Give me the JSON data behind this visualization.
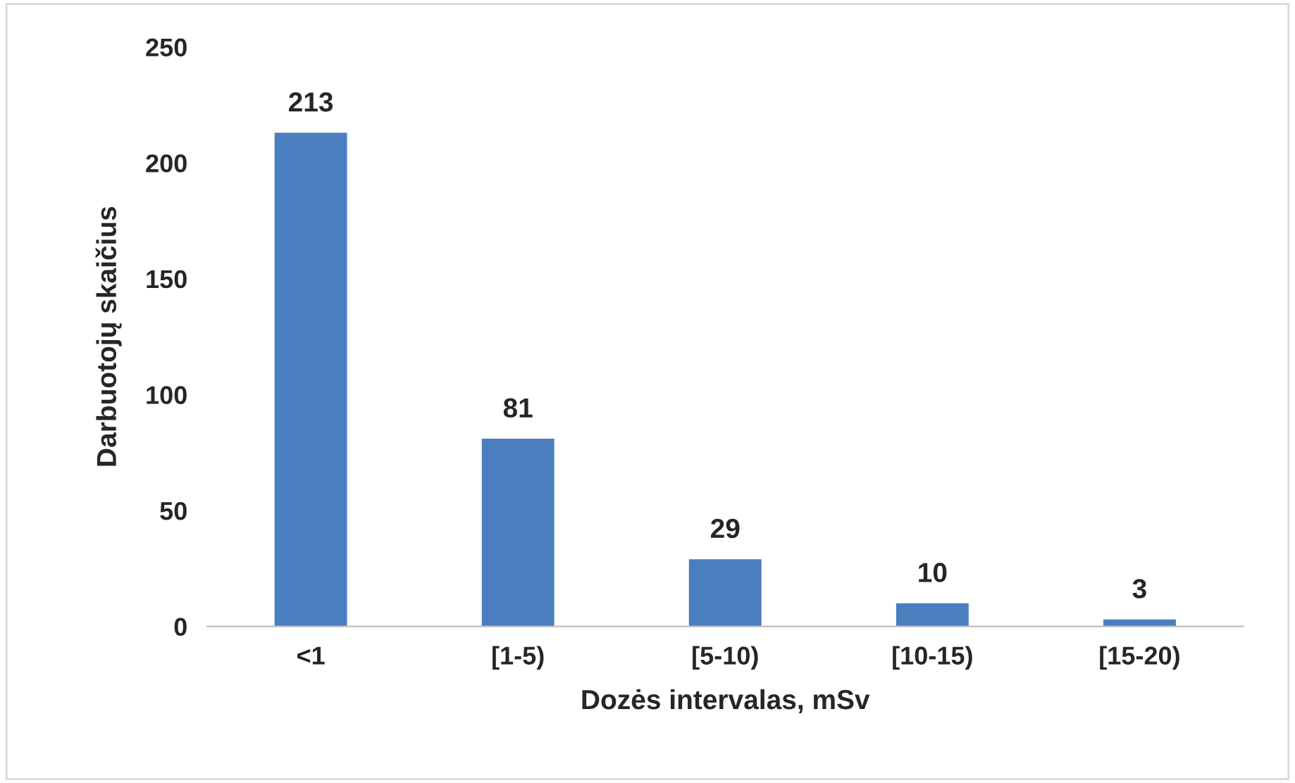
{
  "chart_data": {
    "type": "bar",
    "xlabel": "Dozės intervalas, mSv",
    "ylabel": "Darbuotojų skaičius",
    "categories": [
      "<1",
      "[1-5)",
      "[5-10)",
      "[10-15)",
      "[15-20)"
    ],
    "values": [
      213,
      81,
      29,
      10,
      3
    ],
    "color": "#4a7ebf",
    "ylim": [
      0,
      250
    ],
    "yticks": [
      0,
      50,
      100,
      150,
      200,
      250
    ],
    "grid": false,
    "data_labels": true
  }
}
